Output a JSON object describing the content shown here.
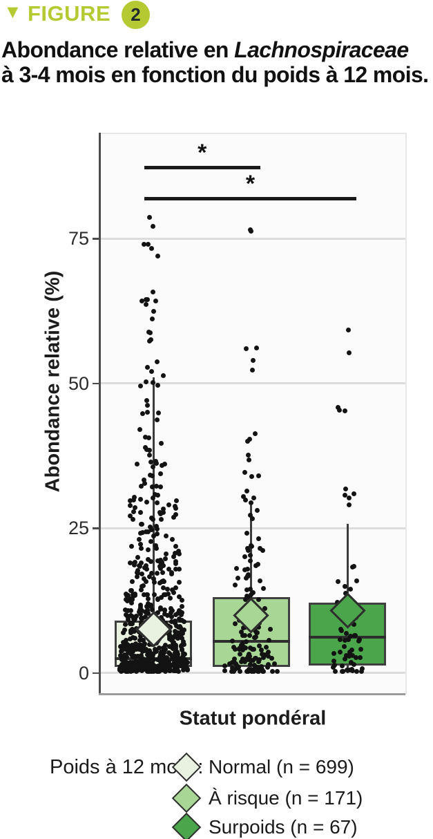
{
  "figure_header": {
    "triangle_icon": "▼",
    "label": "FIGURE",
    "number": "2",
    "accent_color": "#b5c933"
  },
  "title": {
    "line1_prefix": "Abondance relative en ",
    "line1_italic": "Lachnospiraceae",
    "line2": "à 3-4 mois en fonction du poids à 12 mois."
  },
  "chart_data": {
    "type": "boxplot-jitter",
    "xlabel": "Statut pondéral",
    "ylabel": "Abondance relative (%)",
    "ylim": [
      0,
      95
    ],
    "yticks": [
      0,
      25,
      50,
      75
    ],
    "grid": true,
    "point_color": "#131313",
    "groups": [
      {
        "label": "Normal",
        "n": 699,
        "color": "#e9f1e1",
        "mean": 7.5,
        "stats": {
          "whisker_low": 0,
          "q1": 1.0,
          "median": 2.5,
          "q3": 9.0,
          "whisker_high": 51
        },
        "jitter_bins": [
          [
            0,
            2,
            176,
            50
          ],
          [
            2,
            5,
            148,
            48
          ],
          [
            5,
            9,
            118,
            45
          ],
          [
            9,
            14,
            88,
            42
          ],
          [
            14,
            22,
            68,
            38
          ],
          [
            22,
            30,
            40,
            34
          ],
          [
            30,
            38,
            22,
            30
          ],
          [
            38,
            45,
            10,
            26
          ],
          [
            45,
            50,
            5,
            22
          ],
          [
            50,
            54,
            6,
            20
          ],
          [
            57,
            60,
            4,
            16
          ],
          [
            60,
            66,
            8,
            20
          ],
          [
            72,
            75,
            4,
            14
          ],
          [
            77,
            79,
            2,
            10
          ]
        ]
      },
      {
        "label": "À risque",
        "n": 171,
        "color": "#a8d695",
        "mean": 9.9,
        "stats": {
          "whisker_low": 0,
          "q1": 1.0,
          "median": 5.4,
          "q3": 13.1,
          "whisker_high": 29
        },
        "jitter_bins": [
          [
            0,
            2,
            40,
            38
          ],
          [
            2,
            5,
            35,
            36
          ],
          [
            5,
            9,
            28,
            34
          ],
          [
            9,
            14,
            20,
            30
          ],
          [
            14,
            20,
            16,
            26
          ],
          [
            20,
            25,
            10,
            22
          ],
          [
            26,
            32,
            8,
            18
          ],
          [
            33,
            43,
            8,
            16
          ],
          [
            51,
            57,
            4,
            14
          ],
          [
            75.5,
            77,
            2,
            10
          ]
        ]
      },
      {
        "label": "Surpoids",
        "n": 67,
        "color": "#4ba54b",
        "mean": 10.7,
        "stats": {
          "whisker_low": 0,
          "q1": 1.3,
          "median": 6.2,
          "q3": 12.1,
          "whisker_high": 25.7
        },
        "jitter_bins": [
          [
            0,
            2,
            16,
            30
          ],
          [
            2,
            5,
            14,
            28
          ],
          [
            5,
            9,
            12,
            26
          ],
          [
            9,
            13,
            8,
            22
          ],
          [
            13,
            17,
            5,
            18
          ],
          [
            17,
            19,
            2,
            12
          ],
          [
            29,
            33,
            5,
            12
          ],
          [
            45,
            46,
            3,
            20
          ],
          [
            55,
            55.5,
            1,
            8
          ],
          [
            59,
            59.5,
            1,
            6
          ]
        ]
      }
    ],
    "significance": [
      {
        "between": [
          0,
          1
        ],
        "label": "*",
        "y": 87.3
      },
      {
        "between": [
          0,
          2
        ],
        "label": "*",
        "y": 81.9
      }
    ]
  },
  "legend": {
    "title": "Poids à 12 mois :",
    "items": [
      {
        "label": "Normal (n = 699)",
        "color": "#e9f1e1"
      },
      {
        "label": "À risque (n = 171)",
        "color": "#a8d695"
      },
      {
        "label": "Surpoids (n = 67)",
        "color": "#4ba54b"
      }
    ]
  }
}
